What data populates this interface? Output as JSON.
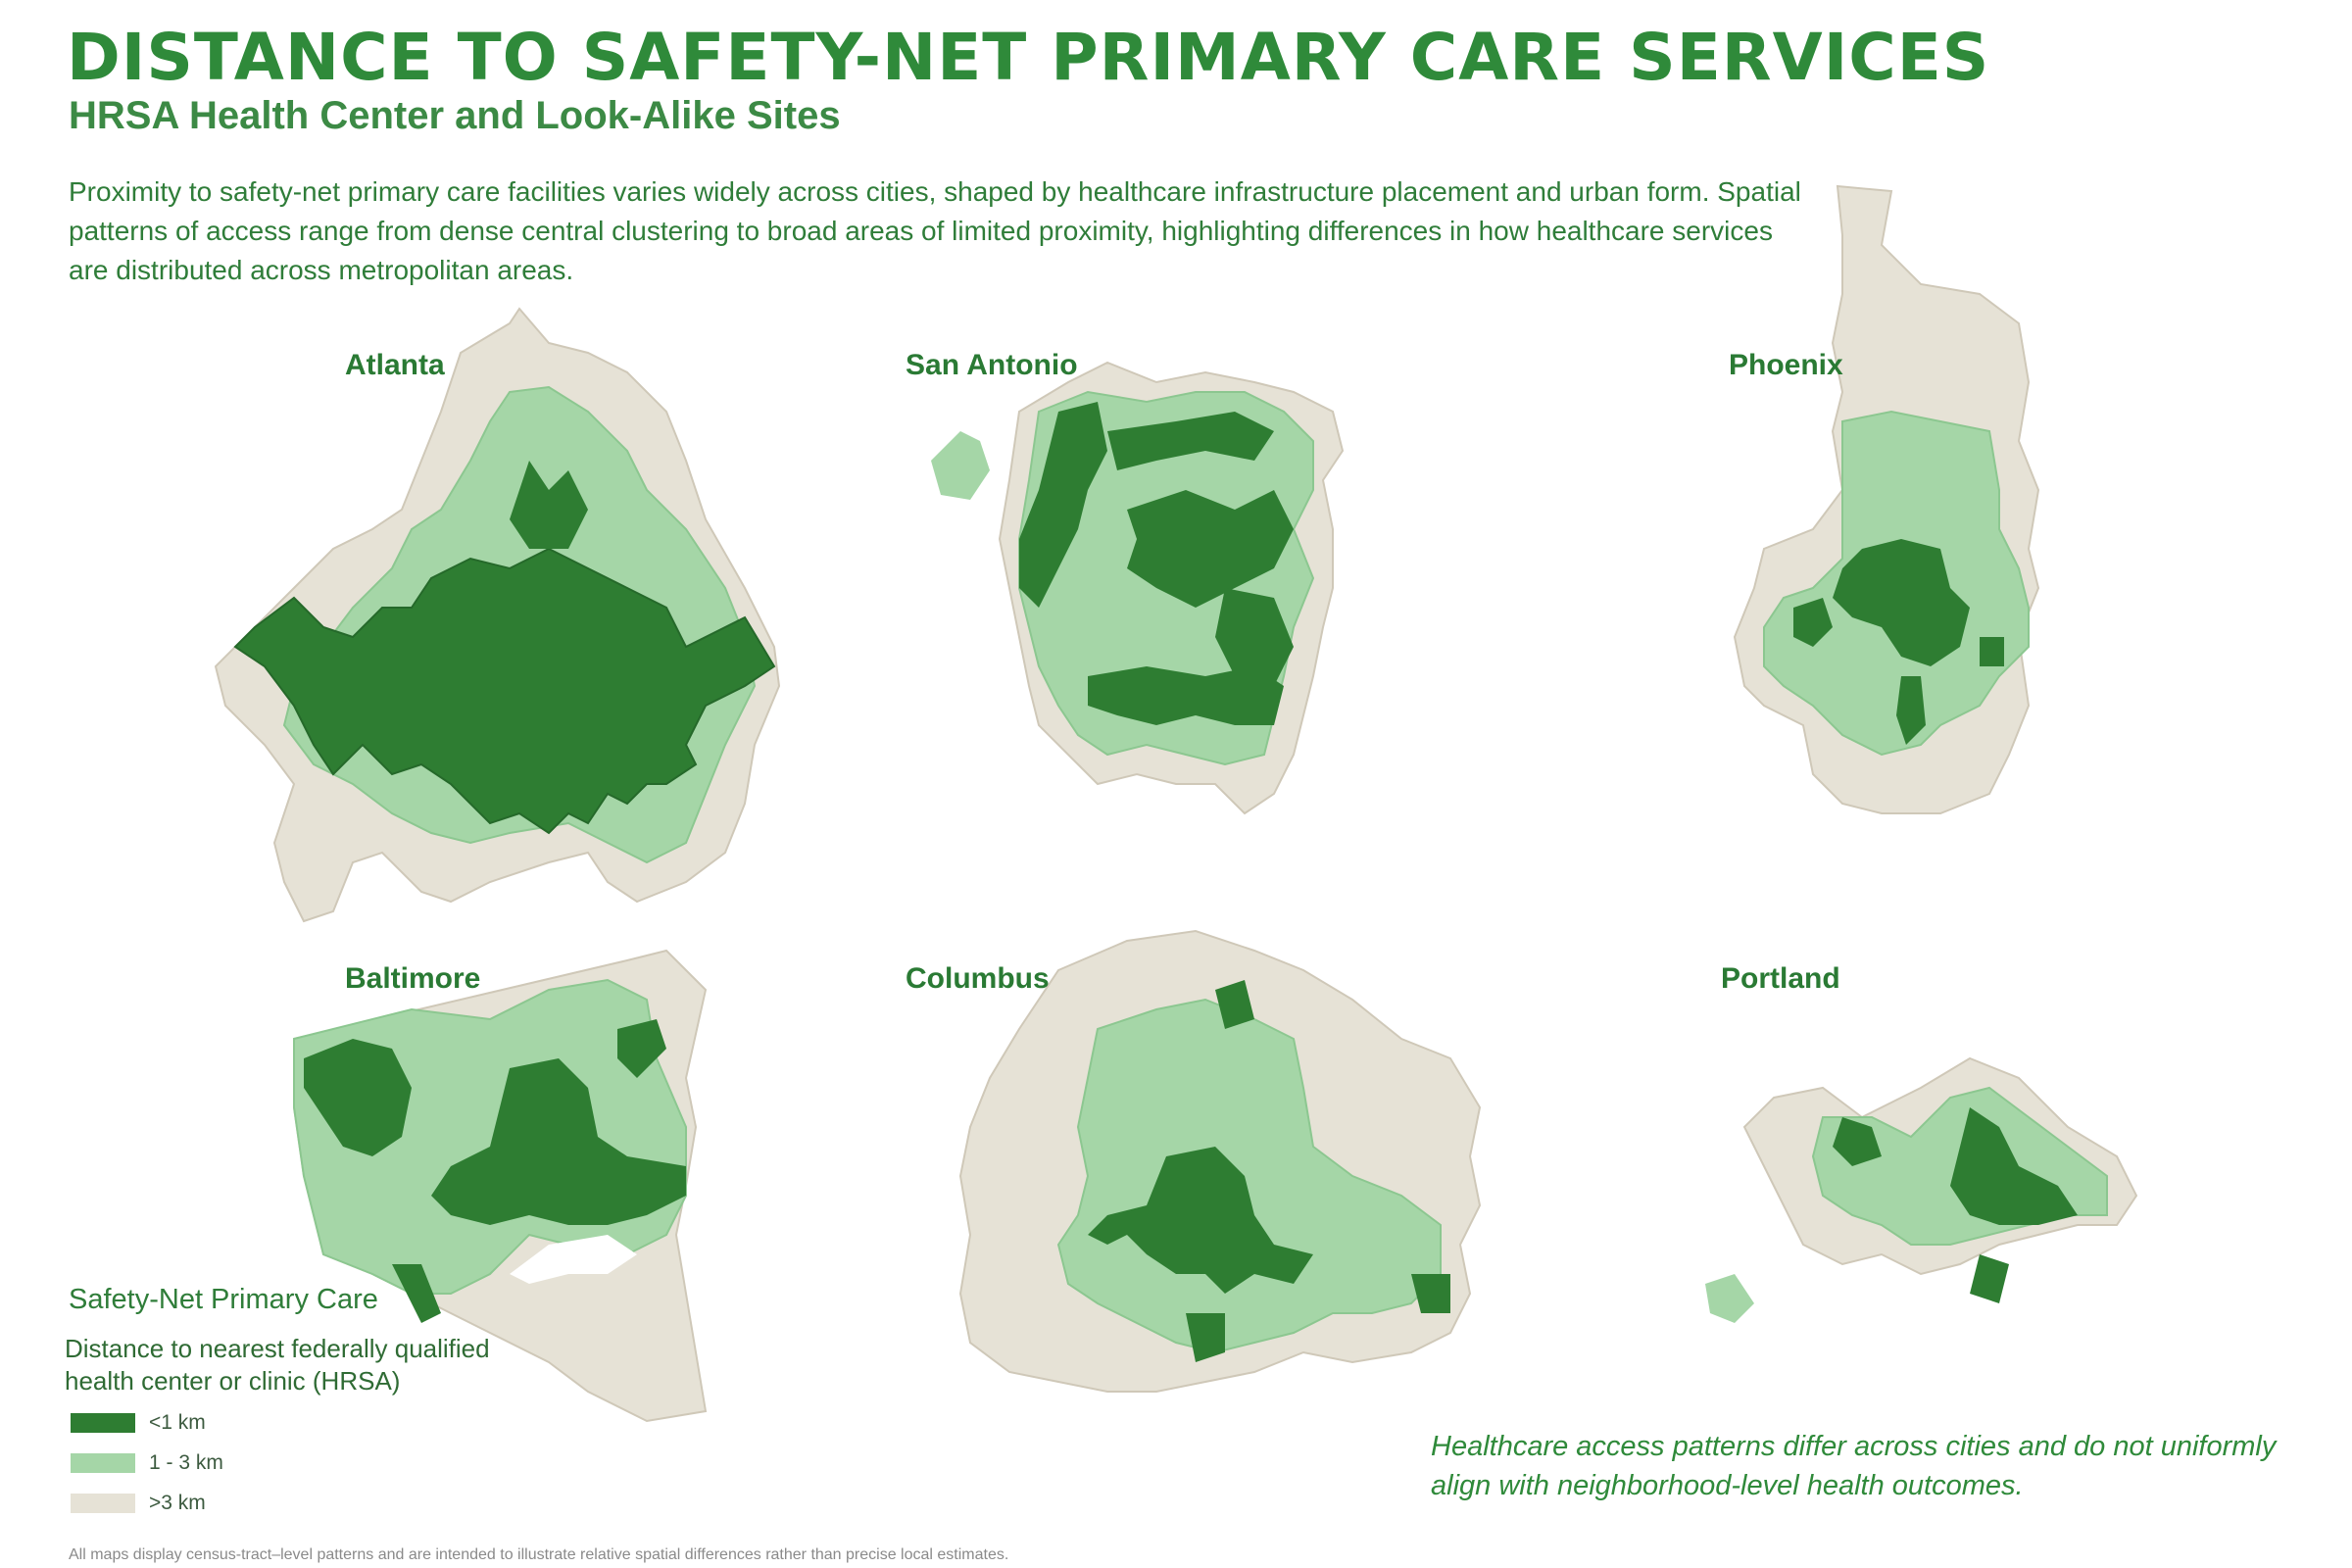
{
  "header": {
    "title": "DISTANCE TO SAFETY-NET PRIMARY CARE SERVICES",
    "subtitle": "HRSA Health Center and Look-Alike Sites",
    "intro": "Proximity to safety-net primary care facilities varies widely across cities, shaped by healthcare infrastructure placement and urban form. Spatial patterns of access range from dense central clustering to broad areas of limited proximity, highlighting differences in how healthcare services are distributed across metropolitan areas."
  },
  "cities": {
    "atlanta": "Atlanta",
    "san_antonio": "San Antonio",
    "phoenix": "Phoenix",
    "baltimore": "Baltimore",
    "columbus": "Columbus",
    "portland": "Portland"
  },
  "colors": {
    "near": "#2e7d32",
    "mid": "#a5d6a7",
    "far": "#e6e2d6",
    "tract_line": "#c9c2b2",
    "text_green": "#2f8a3a"
  },
  "legend": {
    "title": "Safety-Net Primary Care",
    "description": "Distance to nearest federally qualified health center or clinic (HRSA)",
    "items": [
      {
        "label": "<1 km",
        "color": "#2e7d32"
      },
      {
        "label": "1 - 3 km",
        "color": "#a5d6a7"
      },
      {
        "label": ">3 km",
        "color": "#e6e2d6"
      }
    ]
  },
  "note": "Healthcare access patterns differ across cities and do not uniformly align with neighborhood-level health outcomes.",
  "footnote": "All maps display census-tract–level patterns and are intended to illustrate relative spatial differences rather than precise local estimates."
}
